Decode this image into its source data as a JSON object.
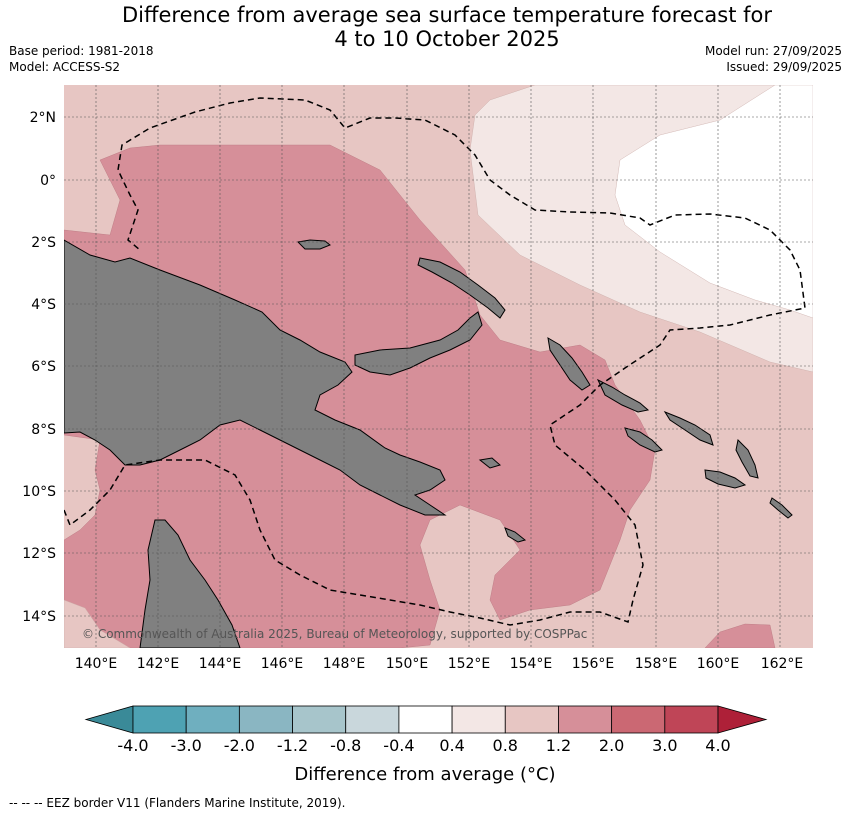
{
  "title_line1": "Difference from average sea surface temperature forecast for",
  "title_line2": "4 to 10 October 2025",
  "meta_left": [
    "Base period: 1981-2018",
    "Model: ACCESS-S2"
  ],
  "meta_right": [
    "Model run: 27/09/2025",
    "Issued: 29/09/2025"
  ],
  "copyright": "© Commonwealth of Australia 2025, Bureau of Meteorology, supported by COSPPac",
  "lon_ticks": [
    "140°E",
    "142°E",
    "144°E",
    "146°E",
    "148°E",
    "150°E",
    "152°E",
    "154°E",
    "156°E",
    "158°E",
    "160°E",
    "162°E"
  ],
  "lat_ticks": [
    "2°N",
    "0°",
    "2°S",
    "4°S",
    "6°S",
    "8°S",
    "10°S",
    "12°S",
    "14°S"
  ],
  "colorbar": {
    "title": "Difference from average (°C)",
    "labels": [
      "-4.0",
      "-3.0",
      "-2.0",
      "-1.2",
      "-0.8",
      "-0.4",
      "0.4",
      "0.8",
      "1.2",
      "2.0",
      "3.0",
      "4.0"
    ],
    "colors": [
      "#3a8a98",
      "#4ea2b3",
      "#6fafbf",
      "#8ab6c2",
      "#a7c5cb",
      "#c9d7dc",
      "#ffffff",
      "#f3e7e5",
      "#e7c6c3",
      "#d68f99",
      "#cb6873",
      "#bf4557",
      "#ae2038"
    ]
  },
  "map_colors": {
    "land": "#808080",
    "c08": "#f3e7e5",
    "c12": "#e7c6c3",
    "c20": "#d68f99",
    "c30": "#cb6873"
  },
  "footer": "--  --  -- EEZ border V11 (Flanders Marine Institute, 2019)."
}
